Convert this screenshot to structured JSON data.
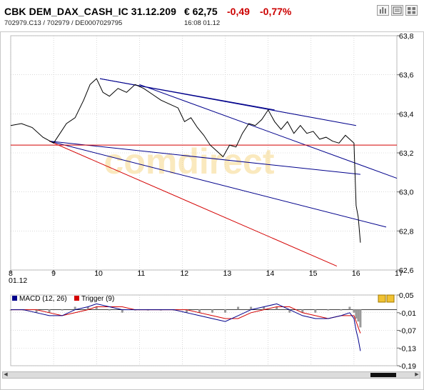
{
  "header": {
    "title": "CBK DEM_DAX_CASH_IC 31.12.209",
    "price": "€ 62,75",
    "change": "-0,49",
    "change_pct": "-0,77%",
    "subtitle": "702979.C13  /  702979  /  DE0007029795",
    "time": "16:08   01.12",
    "buttons": [
      "bar-chart-icon",
      "news-icon",
      "grid-icon"
    ]
  },
  "colors": {
    "price_line": "#000000",
    "trend_blue": "#00008b",
    "trend_red": "#d40000",
    "grid": "#c0c0c0",
    "macd": "#00008b",
    "trigger": "#d40000",
    "histogram": "#9a9a9a"
  },
  "watermark": "comdirect",
  "chart_data": [
    {
      "type": "line",
      "title": "",
      "x_tick_labels": [
        "8",
        "9",
        "10",
        "11",
        "12",
        "13",
        "14",
        "15",
        "16",
        "17"
      ],
      "x_sublabel": "01.12",
      "y_tick_labels": [
        "63,8",
        "63,6",
        "63,4",
        "63,2",
        "63,0",
        "62,8",
        "62,6"
      ],
      "ylim": [
        62.6,
        63.8
      ],
      "xlim": [
        8,
        17
      ],
      "grid": true,
      "series": [
        {
          "x": [
            8.0,
            8.25,
            8.5,
            8.75,
            9.0,
            9.15,
            9.3,
            9.5,
            9.7,
            9.85,
            10.0,
            10.15,
            10.3,
            10.5,
            10.7,
            10.9,
            11.1,
            11.3,
            11.5,
            11.7,
            11.9,
            12.05,
            12.2,
            12.35,
            12.5,
            12.65,
            12.8,
            12.95,
            13.1,
            13.25,
            13.4,
            13.55,
            13.7,
            13.85,
            14.0,
            14.15,
            14.3,
            14.45,
            14.6,
            14.75,
            14.9,
            15.05,
            15.2,
            15.35,
            15.5,
            15.65,
            15.8,
            15.95,
            16.0,
            16.05,
            16.1,
            16.15
          ],
          "y": [
            63.34,
            63.35,
            63.33,
            63.28,
            63.25,
            63.3,
            63.35,
            63.38,
            63.47,
            63.55,
            63.58,
            63.51,
            63.49,
            63.53,
            63.51,
            63.55,
            63.53,
            63.5,
            63.47,
            63.45,
            63.43,
            63.36,
            63.38,
            63.33,
            63.29,
            63.24,
            63.21,
            63.18,
            63.24,
            63.23,
            63.3,
            63.35,
            63.34,
            63.37,
            63.42,
            63.36,
            63.32,
            63.36,
            63.3,
            63.34,
            63.3,
            63.31,
            63.27,
            63.28,
            63.26,
            63.25,
            63.29,
            63.26,
            63.25,
            62.93,
            62.87,
            62.74
          ]
        }
      ],
      "trendlines": [
        {
          "color": "blue",
          "x": [
            10.08,
            14.15
          ],
          "y": [
            63.58,
            63.42
          ]
        },
        {
          "color": "blue",
          "x": [
            10.08,
            16.05
          ],
          "y": [
            63.58,
            63.34
          ]
        },
        {
          "color": "blue",
          "x": [
            11.0,
            17.0
          ],
          "y": [
            63.55,
            63.07
          ]
        },
        {
          "color": "blue",
          "x": [
            8.9,
            16.15
          ],
          "y": [
            63.26,
            63.09
          ]
        },
        {
          "color": "blue",
          "x": [
            8.9,
            16.75
          ],
          "y": [
            63.26,
            62.82
          ]
        },
        {
          "color": "red",
          "x": [
            8.9,
            15.6
          ],
          "y": [
            63.26,
            62.62
          ]
        },
        {
          "color": "red",
          "x": [
            8.0,
            17.0
          ],
          "y": [
            63.24,
            63.24
          ]
        }
      ]
    },
    {
      "type": "line",
      "title": "",
      "y_tick_labels": [
        "0,05",
        "-0,01",
        "-0,07",
        "-0,13",
        "-0,19"
      ],
      "ylim": [
        -0.19,
        0.05
      ],
      "xlim": [
        8,
        17
      ],
      "legend": [
        "MACD (12, 26)",
        "Trigger (9)"
      ],
      "legend_position": "top-left",
      "series": [
        {
          "name": "MACD (12, 26)",
          "x": [
            8.0,
            8.3,
            8.6,
            8.9,
            9.2,
            9.5,
            9.8,
            10.0,
            10.3,
            10.6,
            10.9,
            11.2,
            11.5,
            11.8,
            12.1,
            12.4,
            12.7,
            13.0,
            13.3,
            13.6,
            13.9,
            14.2,
            14.5,
            14.8,
            15.1,
            15.4,
            15.7,
            15.9,
            16.0,
            16.05,
            16.1,
            16.15
          ],
          "y": [
            0.0,
            0.0,
            -0.01,
            -0.02,
            -0.02,
            0.0,
            0.01,
            0.02,
            0.01,
            0.0,
            0.0,
            0.0,
            0.0,
            0.0,
            -0.01,
            -0.02,
            -0.03,
            -0.04,
            -0.02,
            0.0,
            0.01,
            0.02,
            0.0,
            -0.02,
            -0.03,
            -0.03,
            -0.02,
            -0.01,
            -0.03,
            -0.07,
            -0.1,
            -0.14
          ]
        },
        {
          "name": "Trigger (9)",
          "x": [
            8.0,
            8.3,
            8.6,
            8.9,
            9.2,
            9.5,
            9.8,
            10.0,
            10.3,
            10.6,
            10.9,
            11.2,
            11.5,
            11.8,
            12.1,
            12.4,
            12.7,
            13.0,
            13.3,
            13.6,
            13.9,
            14.2,
            14.5,
            14.8,
            15.1,
            15.4,
            15.7,
            15.9,
            16.0,
            16.05,
            16.1,
            16.15
          ],
          "y": [
            0.0,
            0.0,
            0.0,
            -0.01,
            -0.02,
            -0.01,
            0.0,
            0.01,
            0.01,
            0.01,
            0.0,
            0.0,
            0.0,
            0.0,
            0.0,
            -0.01,
            -0.02,
            -0.03,
            -0.03,
            -0.01,
            0.0,
            0.01,
            0.01,
            -0.01,
            -0.02,
            -0.03,
            -0.02,
            -0.02,
            -0.02,
            -0.04,
            -0.06,
            -0.08
          ]
        }
      ]
    }
  ]
}
